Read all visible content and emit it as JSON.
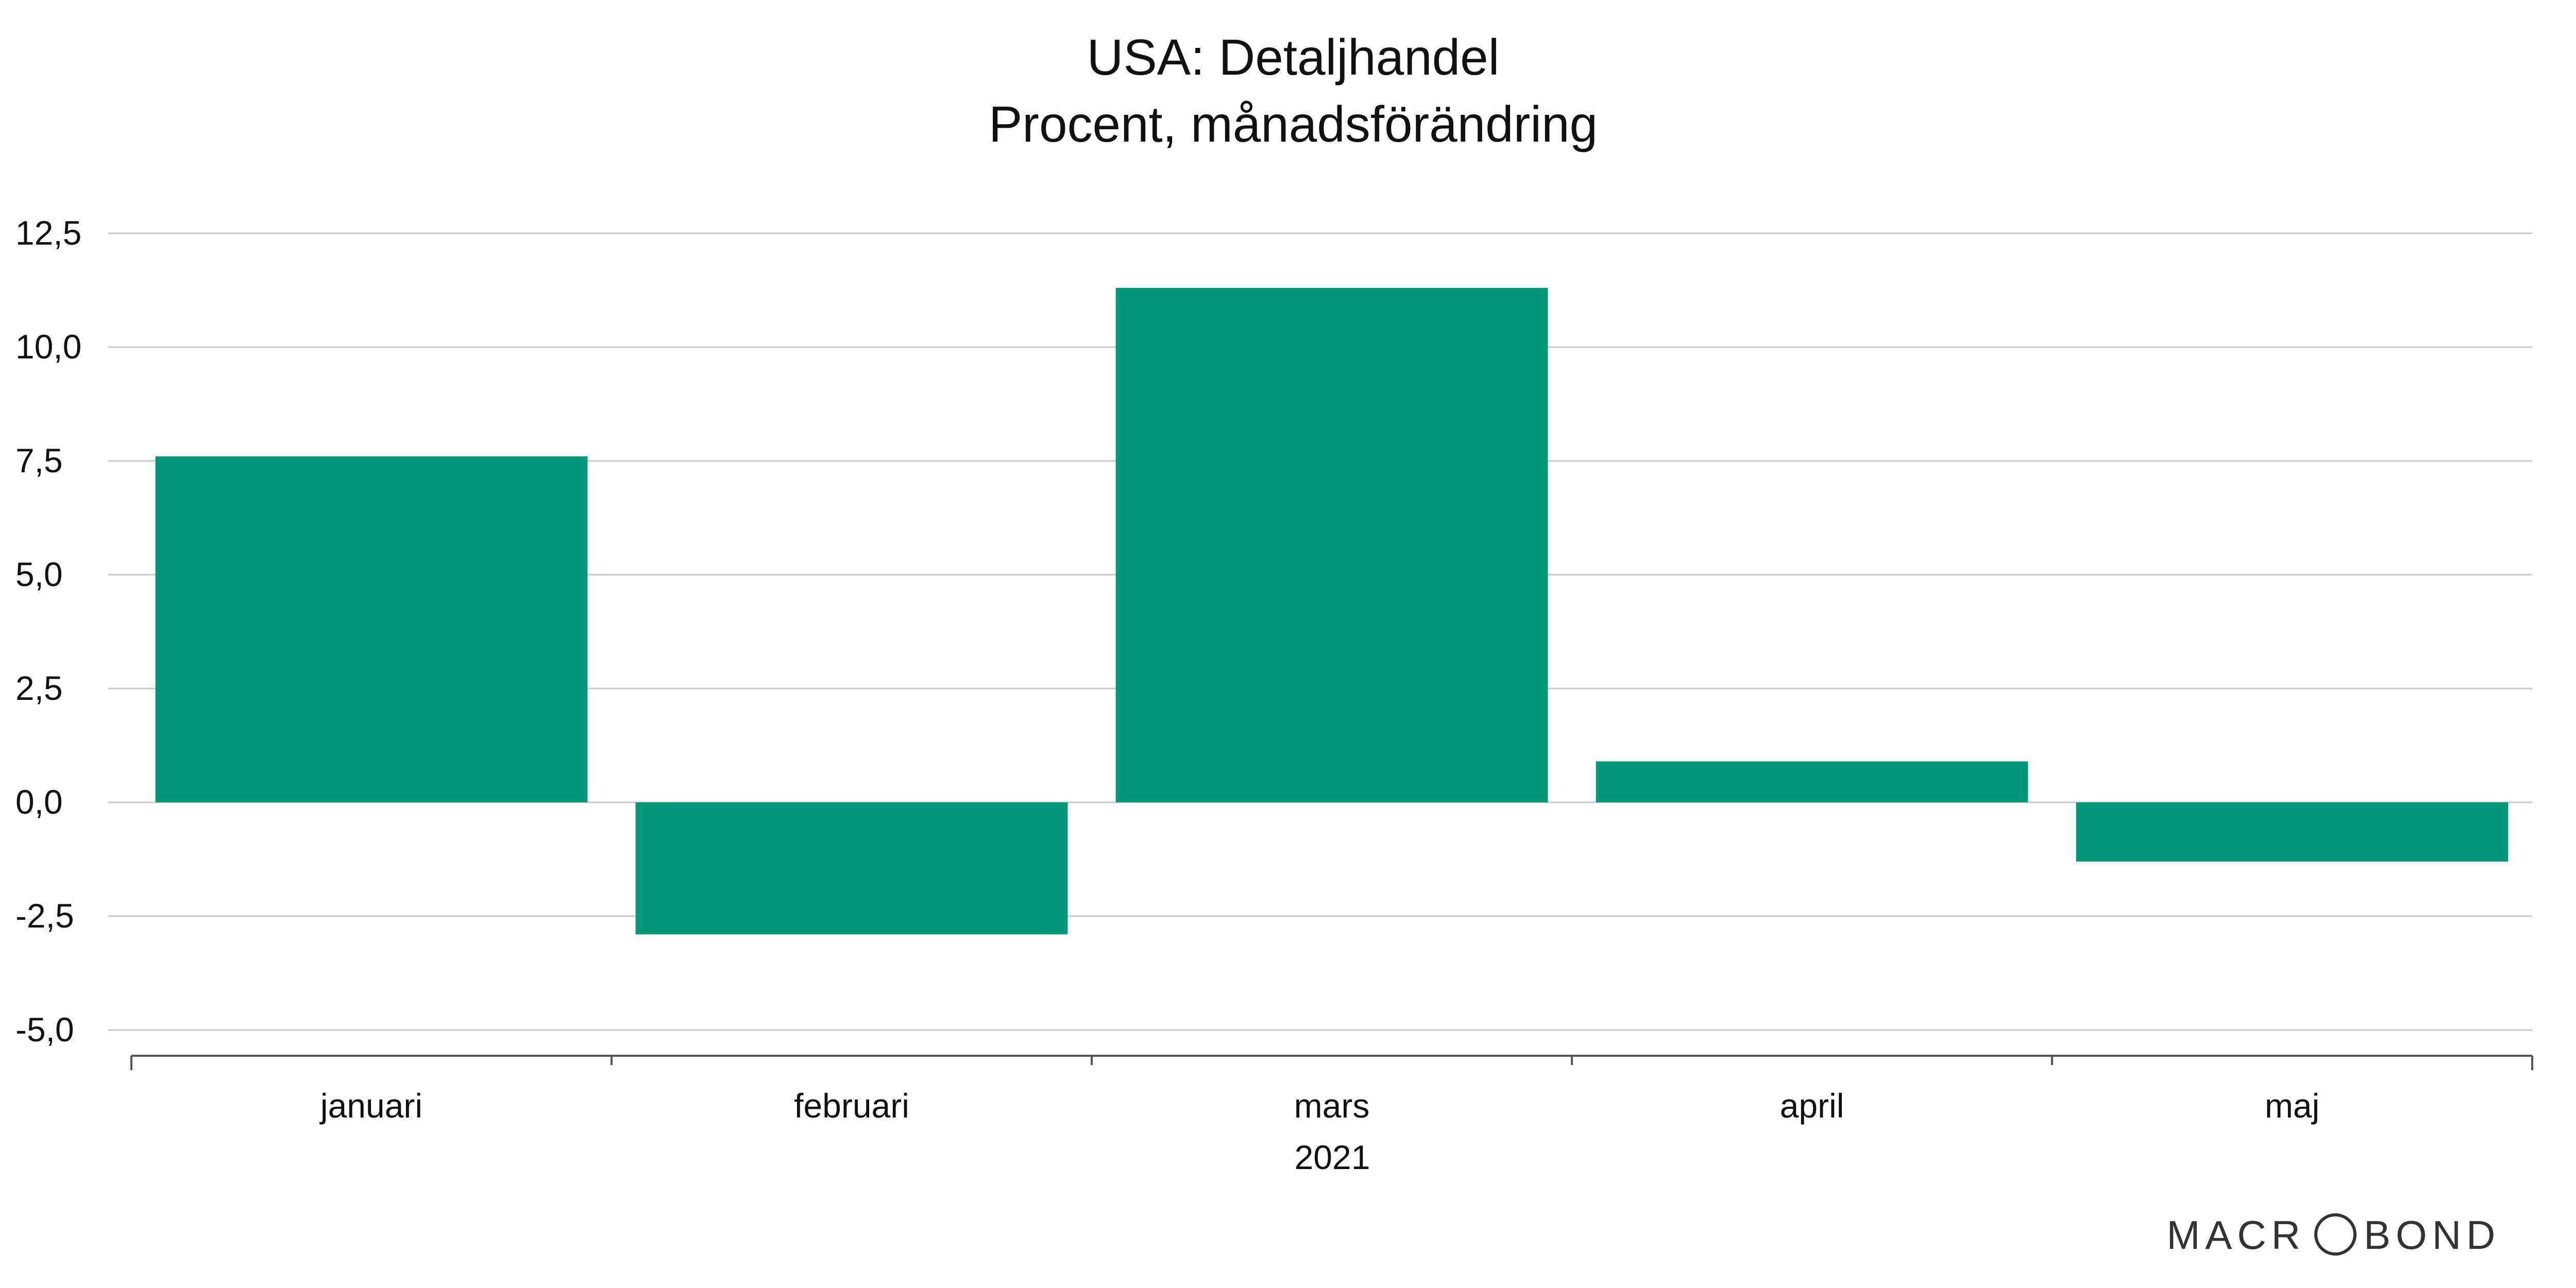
{
  "chart_data": {
    "type": "bar",
    "title": "USA: Detaljhandel",
    "subtitle": "Procent, månadsförändring",
    "categories": [
      "januari",
      "februari",
      "mars",
      "april",
      "maj"
    ],
    "x_group_label": "2021",
    "values": [
      7.6,
      -2.9,
      11.3,
      0.9,
      -1.3
    ],
    "ylim": [
      -5.0,
      12.5
    ],
    "yticks": [
      -5.0,
      -2.5,
      0.0,
      2.5,
      5.0,
      7.5,
      10.0,
      12.5
    ],
    "ytick_labels": [
      "-5,0",
      "-2,5",
      "0,0",
      "2,5",
      "5,0",
      "7,5",
      "10,0",
      "12,5"
    ],
    "grid": true,
    "legend": "none",
    "colors": {
      "bar": "#009877",
      "grid": "#c8c8c8",
      "axis": "#555555"
    }
  },
  "branding": {
    "logo_left": "MACR",
    "logo_right": "BOND"
  }
}
